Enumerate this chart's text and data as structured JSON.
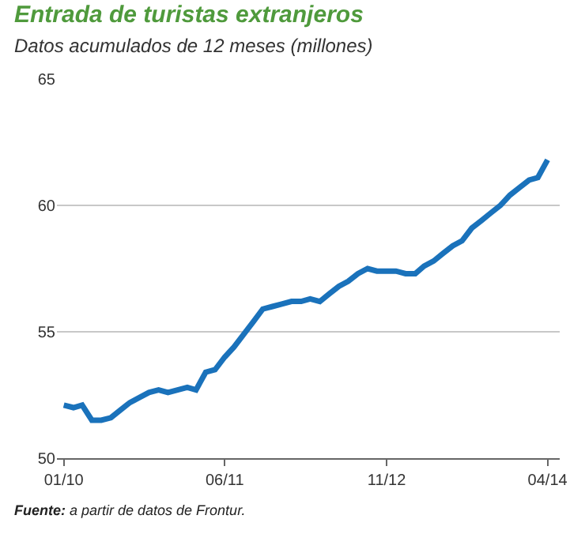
{
  "chart_data": {
    "type": "line",
    "title": "Entrada de turistas extranjeros",
    "subtitle": "Datos acumulados de 12 meses (millones)",
    "annotations": [
      "Fuente: a partir de datos de Frontur."
    ],
    "x": [
      "2010-01",
      "2010-02",
      "2010-03",
      "2010-04",
      "2010-05",
      "2010-06",
      "2010-07",
      "2010-08",
      "2010-09",
      "2010-10",
      "2010-11",
      "2010-12",
      "2011-01",
      "2011-02",
      "2011-03",
      "2011-04",
      "2011-05",
      "2011-06",
      "2011-07",
      "2011-08",
      "2011-09",
      "2011-10",
      "2011-11",
      "2011-12",
      "2012-01",
      "2012-02",
      "2012-03",
      "2012-04",
      "2012-05",
      "2012-06",
      "2012-07",
      "2012-08",
      "2012-09",
      "2012-10",
      "2012-11",
      "2012-12",
      "2013-01",
      "2013-02",
      "2013-03",
      "2013-04",
      "2013-05",
      "2013-06",
      "2013-07",
      "2013-08",
      "2013-09",
      "2013-10",
      "2013-11",
      "2013-12",
      "2014-01",
      "2014-02",
      "2014-03",
      "2014-04"
    ],
    "series": [
      {
        "color": "#1a72bb",
        "values": [
          52.1,
          52.0,
          52.1,
          51.5,
          51.5,
          51.6,
          51.9,
          52.2,
          52.4,
          52.6,
          52.7,
          52.6,
          52.7,
          52.8,
          52.7,
          53.4,
          53.5,
          54.0,
          54.4,
          54.9,
          55.4,
          55.9,
          56.0,
          56.1,
          56.2,
          56.2,
          56.3,
          56.2,
          56.5,
          56.8,
          57.0,
          57.3,
          57.5,
          57.4,
          57.4,
          57.4,
          57.3,
          57.3,
          57.6,
          57.8,
          58.1,
          58.4,
          58.6,
          59.1,
          59.4,
          59.7,
          60.0,
          60.4,
          60.7,
          61.0,
          61.1,
          61.8
        ]
      }
    ],
    "xlim": [
      "2009-12-10",
      "2014-05-10"
    ],
    "xticks": [
      {
        "value": "2010-01",
        "label": "01/10"
      },
      {
        "value": "2011-06",
        "label": "06/11"
      },
      {
        "value": "2012-11",
        "label": "11/12"
      },
      {
        "value": "2014-04",
        "label": "04/14"
      }
    ],
    "ylim": [
      50,
      65
    ],
    "yticks": [
      50,
      55,
      60,
      65
    ],
    "grid": "y",
    "marker": "none",
    "line_style": "solid"
  }
}
